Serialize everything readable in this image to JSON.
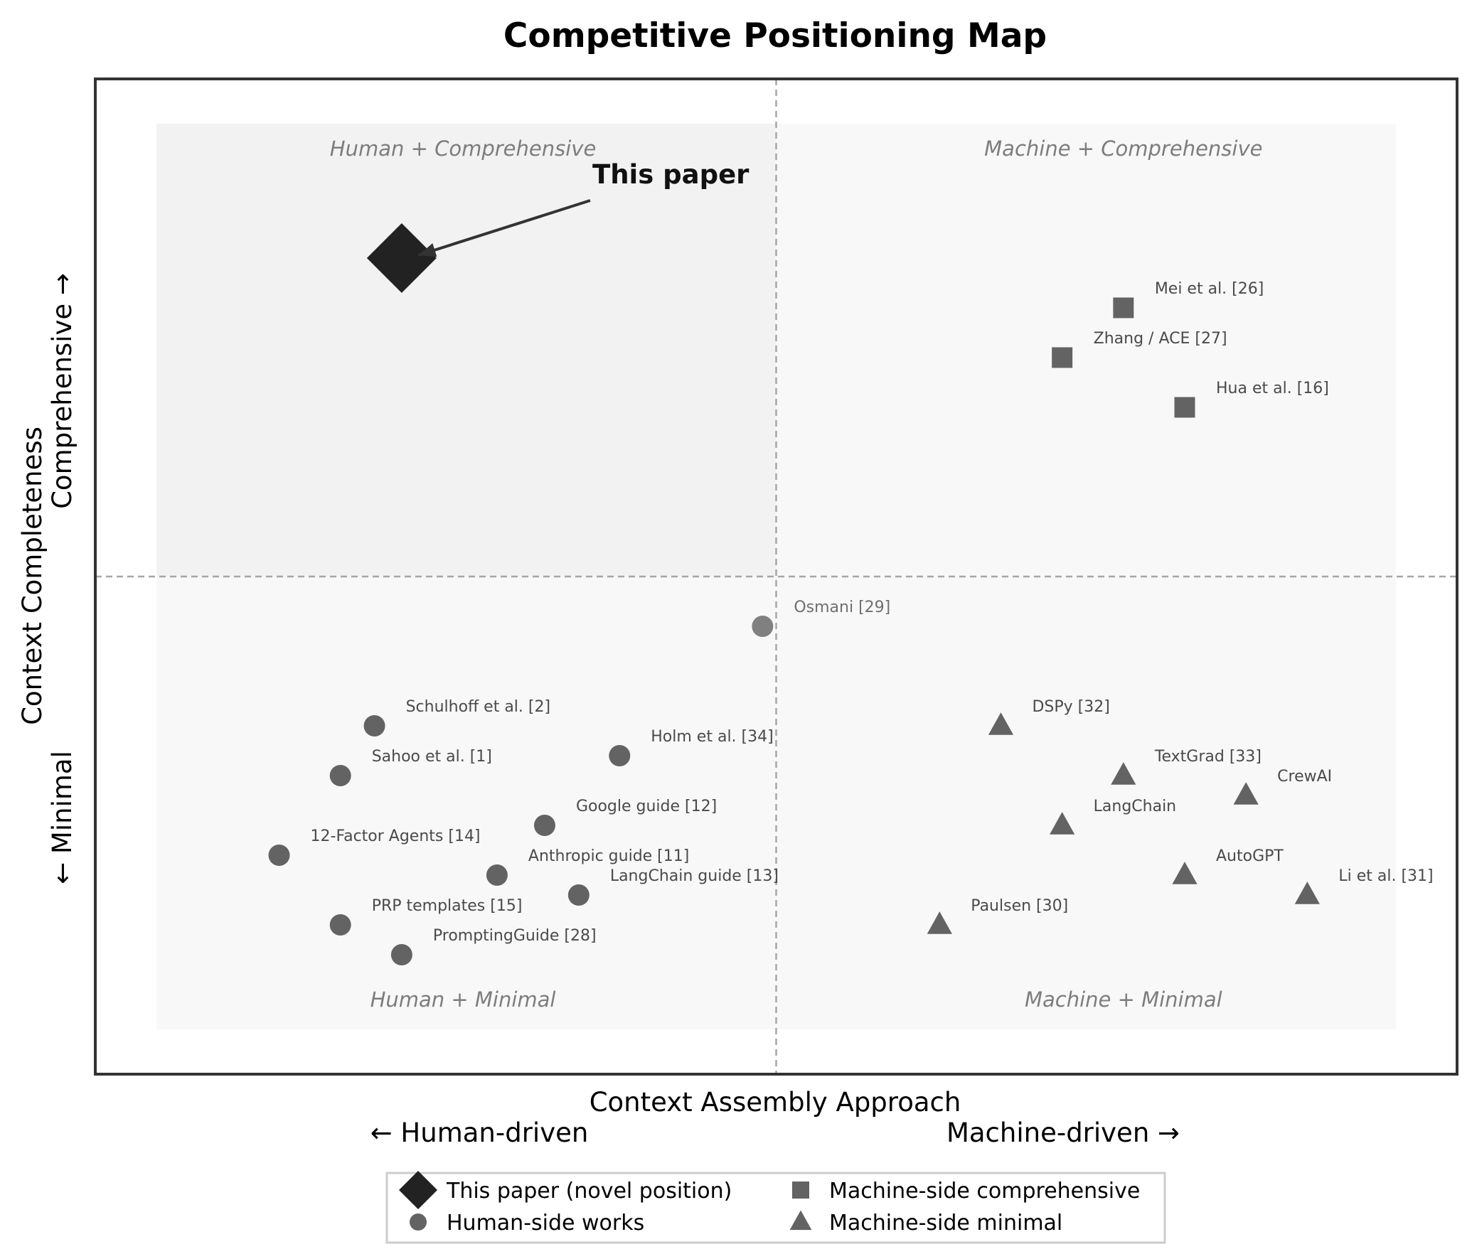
{
  "chart_data": {
    "type": "scatter",
    "title": "Competitive Positioning Map",
    "xlabel": "Context Assembly Approach",
    "xlabel_left": "← Human-driven",
    "xlabel_right": "Machine-driven →",
    "ylabel": "Context Completeness",
    "ylabel_top": "Comprehensive →",
    "ylabel_bottom": "← Minimal",
    "xlim": [
      0,
      10
    ],
    "ylim": [
      0,
      10
    ],
    "grid": false,
    "quadrant_dividers": {
      "x": 5,
      "y": 5
    },
    "quadrants": [
      {
        "label": "Human + Comprehensive",
        "x": 2.7,
        "y": 9.3
      },
      {
        "label": "Machine + Comprehensive",
        "x": 7.55,
        "y": 9.3
      },
      {
        "label": "Human + Minimal",
        "x": 2.7,
        "y": 0.75
      },
      {
        "label": "Machine + Minimal",
        "x": 7.55,
        "y": 0.75
      }
    ],
    "annotation": {
      "text": "This paper",
      "x": 3.65,
      "y": 8.95,
      "target_x": 2.3,
      "target_y": 8.2
    },
    "legend": {
      "position": "bottom-center",
      "entries": [
        {
          "label": "This paper (novel position)",
          "marker": "diamond"
        },
        {
          "label": "Machine-side comprehensive",
          "marker": "square"
        },
        {
          "label": "Human-side works",
          "marker": "circle"
        },
        {
          "label": "Machine-side minimal",
          "marker": "triangle"
        }
      ]
    },
    "series": [
      {
        "name": "This paper (novel position)",
        "marker": "diamond",
        "color": "#222222",
        "points": [
          {
            "x": 2.25,
            "y": 8.2
          }
        ]
      },
      {
        "name": "Machine-side comprehensive",
        "marker": "square",
        "color": "#636363",
        "points": [
          {
            "label": "Mei et al. [26]",
            "x": 7.55,
            "y": 7.7
          },
          {
            "label": "Zhang / ACE [27]",
            "x": 7.1,
            "y": 7.2
          },
          {
            "label": "Hua et al. [16]",
            "x": 8.0,
            "y": 6.7
          }
        ]
      },
      {
        "name": "Human-side works",
        "marker": "circle",
        "color": "#636363",
        "points": [
          {
            "label": "Osmani [29]",
            "x": 4.9,
            "y": 4.5,
            "faded": true
          },
          {
            "label": "Schulhoff et al. [2]",
            "x": 2.05,
            "y": 3.5
          },
          {
            "label": "Holm et al. [34]",
            "x": 3.85,
            "y": 3.2
          },
          {
            "label": "Sahoo et al. [1]",
            "x": 1.8,
            "y": 3.0
          },
          {
            "label": "Google guide [12]",
            "x": 3.3,
            "y": 2.5
          },
          {
            "label": "12-Factor Agents [14]",
            "x": 1.35,
            "y": 2.2
          },
          {
            "label": "Anthropic guide [11]",
            "x": 2.95,
            "y": 2.0
          },
          {
            "label": "LangChain guide [13]",
            "x": 3.55,
            "y": 1.8
          },
          {
            "label": "PRP templates [15]",
            "x": 1.8,
            "y": 1.5
          },
          {
            "label": "PromptingGuide [28]",
            "x": 2.25,
            "y": 1.2
          }
        ]
      },
      {
        "name": "Machine-side minimal",
        "marker": "triangle",
        "color": "#636363",
        "points": [
          {
            "label": "DSPy [32]",
            "x": 6.65,
            "y": 3.5
          },
          {
            "label": "TextGrad [33]",
            "x": 7.55,
            "y": 3.0
          },
          {
            "label": "CrewAI",
            "x": 8.45,
            "y": 2.8
          },
          {
            "label": "LangChain",
            "x": 7.1,
            "y": 2.5
          },
          {
            "label": "AutoGPT",
            "x": 8.0,
            "y": 2.0
          },
          {
            "label": "Li et al. [31]",
            "x": 8.9,
            "y": 1.8
          },
          {
            "label": "Paulsen [30]",
            "x": 6.2,
            "y": 1.5
          }
        ]
      }
    ]
  }
}
